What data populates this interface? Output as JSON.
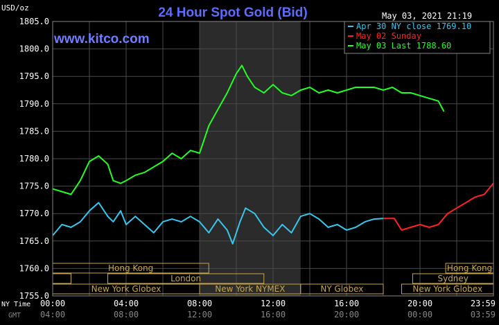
{
  "header": {
    "unit_label": "USD/oz",
    "title": "24 Hour Spot Gold (Bid)",
    "timestamp": "May 03, 2021 21:19",
    "watermark": "www.kitco.com"
  },
  "colors": {
    "background": "#000000",
    "plot_bg": "#000000",
    "shade": "#2b2b2b",
    "grid": "#4a4a4a",
    "axis_text": "#ffffff",
    "title": "#5b6cff",
    "watermark": "#6f7dff",
    "market_bar": "#c8a64a",
    "series_apr30": "#37c7ef",
    "series_may02": "#ff2222",
    "series_may03": "#22ff22"
  },
  "legend": [
    {
      "label": "Apr 30 NY close 1769.10",
      "color": "#37c7ef"
    },
    {
      "label": "May 02 Sunday",
      "color": "#ff2222"
    },
    {
      "label": "May 03 Last 1788.60",
      "color": "#22ff22"
    }
  ],
  "markets": {
    "rows": [
      [
        {
          "name": "Hong Kong",
          "start": 0.0,
          "end": 8.5
        },
        {
          "name": "Hong Kong",
          "start": 21.4,
          "end": 24.0
        }
      ],
      [
        {
          "name": "",
          "start": 0.0,
          "end": 1.0
        },
        {
          "name": "London",
          "start": 3.0,
          "end": 11.5
        },
        {
          "name": "Sydney",
          "start": 19.6,
          "end": 24.0
        }
      ],
      [
        {
          "name": "New York Globex",
          "start": 0.0,
          "end": 8.0
        },
        {
          "name": "New York NYMEX",
          "start": 8.0,
          "end": 13.5
        },
        {
          "name": "NY Globex",
          "start": 13.5,
          "end": 18.0
        },
        {
          "name": "New York Globex",
          "start": 19.0,
          "end": 24.0
        }
      ]
    ]
  },
  "time_axis": {
    "ny_label": "NY Time",
    "gmt_label": "GMT",
    "ny_ticks": [
      "00:00",
      "04:00",
      "08:00",
      "12:00",
      "16:00",
      "20:00",
      "23:59"
    ],
    "gmt_ticks": [
      "04:00",
      "08:00",
      "12:00",
      "16:00",
      "20:00",
      "00:00",
      "03:59"
    ]
  },
  "chart_data": {
    "type": "line",
    "title": "24 Hour Spot Gold (Bid)",
    "ylabel": "USD/oz",
    "xlabel": "NY Time",
    "ylim": [
      1755,
      1805
    ],
    "yticks": [
      "1755.0",
      "1760.0",
      "1765.0",
      "1770.0",
      "1775.0",
      "1780.0",
      "1785.0",
      "1790.0",
      "1795.0",
      "1800.0",
      "1805.0"
    ],
    "grid": true,
    "legend_position": "top-right",
    "shaded_session_hours": [
      8.0,
      13.5
    ],
    "series": [
      {
        "name": "Apr 30 NY close 1769.10",
        "color": "#37c7ef",
        "x": [
          0,
          0.5,
          1.0,
          1.5,
          2.0,
          2.5,
          3.0,
          3.3,
          3.7,
          4.0,
          4.5,
          5.0,
          5.5,
          6.0,
          6.5,
          7.0,
          7.5,
          8.0,
          8.5,
          9.0,
          9.5,
          9.8,
          10.2,
          10.5,
          11.0,
          11.5,
          12.0,
          12.5,
          13.0,
          13.5,
          14.0,
          14.5,
          15.0,
          15.5,
          16.0,
          16.5,
          17.0,
          17.5,
          18.0
        ],
        "y": [
          1766.0,
          1768.0,
          1767.5,
          1768.5,
          1770.5,
          1772.0,
          1769.5,
          1768.5,
          1770.5,
          1768.0,
          1769.5,
          1768.0,
          1766.5,
          1768.5,
          1769.0,
          1768.5,
          1769.5,
          1768.5,
          1766.5,
          1769.0,
          1767.0,
          1764.5,
          1768.5,
          1771.0,
          1770.0,
          1767.5,
          1766.0,
          1768.0,
          1766.5,
          1769.5,
          1770.0,
          1769.0,
          1767.5,
          1768.0,
          1767.0,
          1767.5,
          1768.5,
          1769.0,
          1769.1
        ]
      },
      {
        "name": "May 02 Sunday",
        "color": "#ff2222",
        "x": [
          18.0,
          18.6,
          19.0,
          19.5,
          20.0,
          20.5,
          21.0,
          21.5,
          22.0,
          22.5,
          23.0,
          23.5,
          23.99
        ],
        "y": [
          1769.1,
          1769.1,
          1767.0,
          1767.5,
          1768.0,
          1767.5,
          1768.0,
          1770.0,
          1771.0,
          1772.0,
          1773.0,
          1773.5,
          1775.5
        ]
      },
      {
        "name": "May 03 Last 1788.60",
        "color": "#22ff22",
        "x": [
          0,
          0.5,
          1.0,
          1.5,
          2.0,
          2.5,
          3.0,
          3.3,
          3.7,
          4.0,
          4.5,
          5.0,
          5.5,
          6.0,
          6.5,
          7.0,
          7.5,
          8.0,
          8.5,
          9.0,
          9.5,
          10.0,
          10.3,
          10.6,
          11.0,
          11.5,
          12.0,
          12.5,
          13.0,
          13.5,
          14.0,
          14.5,
          15.0,
          15.5,
          16.0,
          16.5,
          17.0,
          17.5,
          18.0,
          18.5,
          19.0,
          19.5,
          20.0,
          20.5,
          21.0,
          21.3
        ],
        "y": [
          1774.5,
          1774.0,
          1773.5,
          1776.0,
          1779.5,
          1780.5,
          1779.0,
          1776.0,
          1775.5,
          1776.0,
          1777.0,
          1777.5,
          1778.5,
          1779.5,
          1781.0,
          1780.0,
          1781.5,
          1781.0,
          1786.0,
          1789.0,
          1792.0,
          1795.5,
          1797.0,
          1795.0,
          1793.0,
          1792.0,
          1793.5,
          1792.0,
          1791.5,
          1792.5,
          1793.0,
          1792.0,
          1792.5,
          1792.0,
          1792.5,
          1793.0,
          1793.0,
          1793.0,
          1792.5,
          1793.0,
          1792.0,
          1792.0,
          1791.5,
          1791.0,
          1790.5,
          1788.6
        ]
      }
    ]
  }
}
